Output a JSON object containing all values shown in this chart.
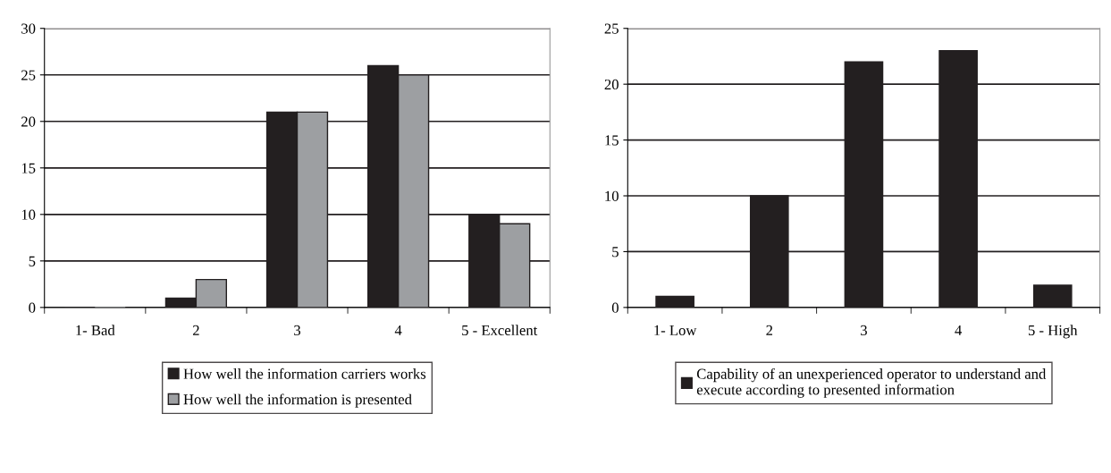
{
  "chart_data": [
    {
      "type": "bar",
      "categories": [
        "1- Bad",
        "2",
        "3",
        "4",
        "5 - Excellent"
      ],
      "ylim": [
        0,
        30
      ],
      "yticks": [
        0,
        5,
        10,
        15,
        20,
        25,
        30
      ],
      "grid": "y",
      "legend": "bottom",
      "series": [
        {
          "name": "How well the information carriers works",
          "color": "#231f20",
          "values": [
            0,
            1,
            21,
            26,
            10
          ]
        },
        {
          "name": "How well the information is presented",
          "color": "#9d9fa2",
          "values": [
            0,
            3,
            21,
            25,
            9
          ]
        }
      ]
    },
    {
      "type": "bar",
      "categories": [
        "1- Low",
        "2",
        "3",
        "4",
        "5 - High"
      ],
      "ylim": [
        0,
        25
      ],
      "yticks": [
        0,
        5,
        10,
        15,
        20,
        25
      ],
      "grid": "y",
      "legend": "bottom",
      "series": [
        {
          "name": "Capability of an unexperienced operator to understand and execute according to presented information",
          "color": "#231f20",
          "values": [
            1,
            10,
            22,
            23,
            2
          ]
        }
      ]
    }
  ]
}
